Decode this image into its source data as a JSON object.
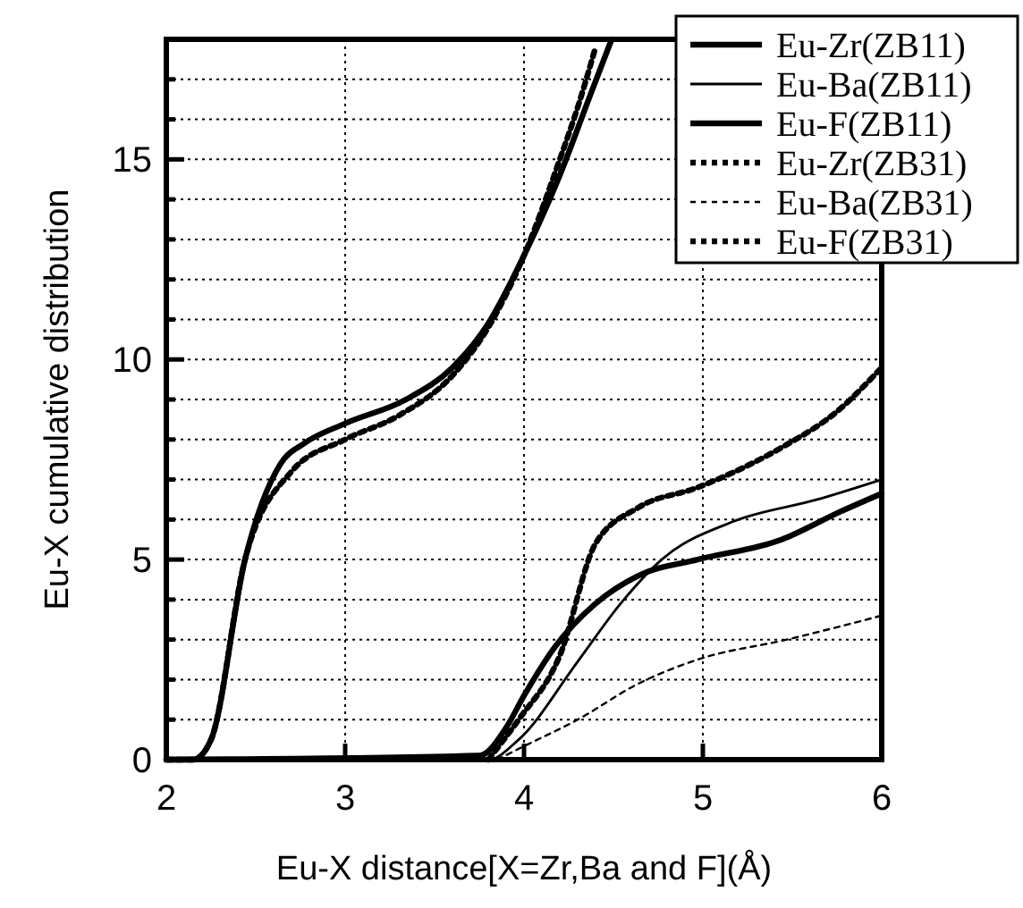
{
  "chart_data": {
    "type": "line",
    "xlabel": "Eu-X distance[X=Zr,Ba and F](Å)",
    "ylabel": "Eu-X cumulative distribution",
    "xlim": [
      2,
      6
    ],
    "ylim": [
      0,
      18
    ],
    "xticks": [
      2,
      3,
      4,
      5,
      6
    ],
    "yticks": [
      0,
      {
        "value": 1,
        "label": null
      },
      {
        "value": 2,
        "label": null
      },
      {
        "value": 3,
        "label": null
      },
      {
        "value": 4,
        "label": null
      },
      5,
      {
        "value": 6,
        "label": null
      },
      {
        "value": 7,
        "label": null
      },
      {
        "value": 8,
        "label": null
      },
      {
        "value": 9,
        "label": null
      },
      10,
      {
        "value": 11,
        "label": null
      },
      {
        "value": 12,
        "label": null
      },
      {
        "value": 13,
        "label": null
      },
      {
        "value": 14,
        "label": null
      },
      15,
      {
        "value": 16,
        "label": null
      },
      {
        "value": 17,
        "label": null
      }
    ],
    "grid": true,
    "legend": "top right",
    "marker": "none",
    "series": [
      {
        "name": "Eu-Zr(ZB11)",
        "color": "#000000",
        "line_style": "solid",
        "x": [
          2,
          3.75,
          3.9,
          4.0,
          4.17,
          4.4,
          4.64,
          4.97,
          5.44,
          5.77,
          6
        ],
        "values": [
          0,
          0.1,
          0.8,
          1.6,
          2.8,
          3.9,
          4.6,
          5.0,
          5.5,
          6.2,
          6.65
        ]
      },
      {
        "name": "Eu-Ba(ZB11)",
        "color": "#000000",
        "line_style": "solid",
        "x": [
          2,
          3.8,
          3.97,
          4.3,
          4.54,
          4.77,
          5.17,
          5.64,
          6
        ],
        "values": [
          0,
          0,
          0.5,
          2.45,
          3.9,
          5.0,
          5.95,
          6.5,
          7.0
        ]
      },
      {
        "name": "Eu-F(ZB11)",
        "color": "#000000",
        "line_style": "solid",
        "x": [
          2,
          2.15,
          2.25,
          2.44,
          2.64,
          2.77,
          3.0,
          3.34,
          3.6,
          3.8,
          4.0,
          4.2,
          4.37,
          4.49
        ],
        "values": [
          0,
          0,
          0.5,
          5,
          7.4,
          7.9,
          8.4,
          9.0,
          9.8,
          10.9,
          12.6,
          14.6,
          16.6,
          18
        ]
      },
      {
        "name": "Eu-Zr(ZB31)",
        "color": "#000000",
        "line_style": "dotted",
        "x": [
          3.8,
          3.97,
          4.2,
          4.4,
          4.64,
          4.97,
          5.44,
          5.75,
          6
        ],
        "values": [
          0,
          1.0,
          2.6,
          5.4,
          6.3,
          6.8,
          7.8,
          8.7,
          9.8
        ]
      },
      {
        "name": "Eu-Ba(ZB31)",
        "color": "#000000",
        "line_style": "dotted",
        "x": [
          3.85,
          3.97,
          4.3,
          4.64,
          4.97,
          5.47,
          6
        ],
        "values": [
          0,
          0.27,
          1.0,
          1.9,
          2.5,
          3.0,
          3.6
        ]
      },
      {
        "name": "Eu-F(ZB31)",
        "color": "#000000",
        "line_style": "dotted",
        "x": [
          2,
          2.15,
          2.25,
          2.44,
          2.7,
          3.0,
          3.3,
          3.6,
          3.8,
          4.0,
          4.2,
          4.3,
          4.4
        ],
        "values": [
          0,
          0,
          0.5,
          5,
          7.2,
          8.0,
          8.6,
          9.6,
          10.8,
          12.6,
          15.0,
          16.3,
          17.8
        ]
      }
    ]
  }
}
